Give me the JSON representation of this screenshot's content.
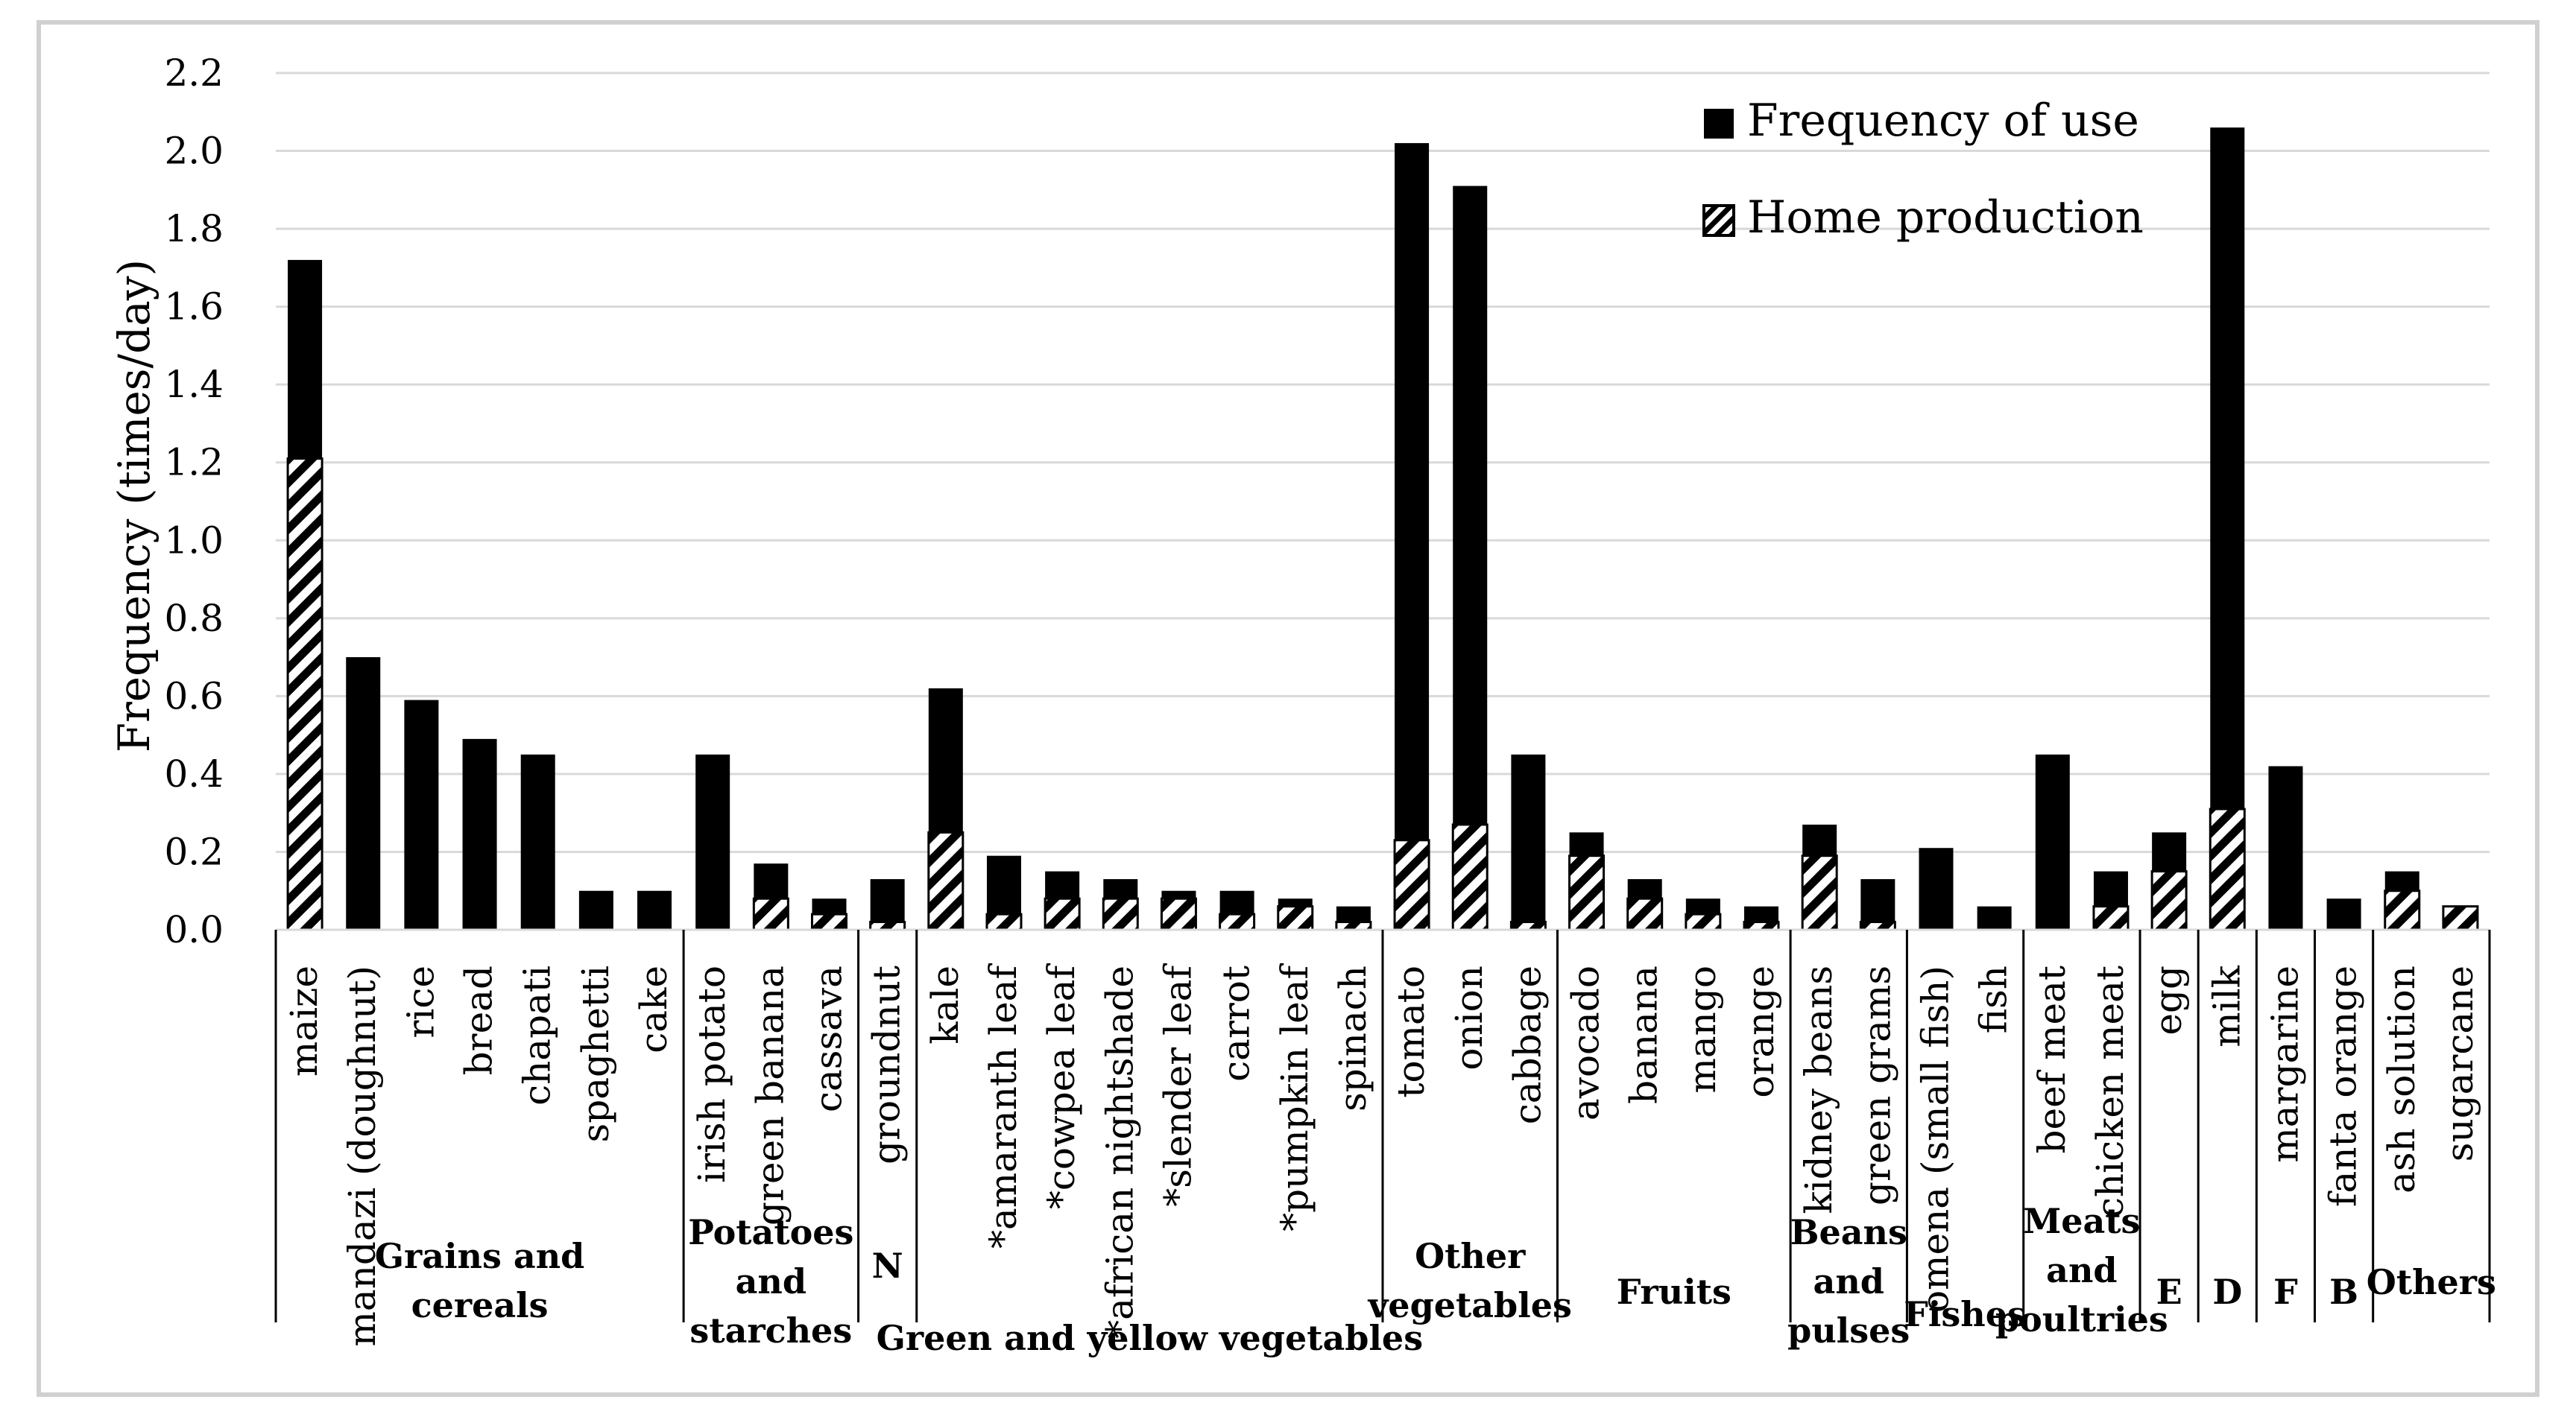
{
  "chart_data": {
    "type": "bar",
    "stacking": "overlay",
    "ylabel": "Frequency (times/day)",
    "xlabel": "",
    "ylim": [
      0,
      2.2
    ],
    "yticks": [
      "0.0",
      "0.2",
      "0.4",
      "0.6",
      "0.8",
      "1.0",
      "1.2",
      "1.4",
      "1.6",
      "1.8",
      "2.0",
      "2.2"
    ],
    "grid": true,
    "legend_position": "top-right",
    "categories": [
      "maize",
      "mandazi (doughnut)",
      "rice",
      "bread",
      "chapati",
      "spaghetti",
      "cake",
      "irish potato",
      "green banana",
      "cassava",
      "groundnut",
      "kale",
      "*amaranth leaf",
      "*cowpea leaf",
      "*african nightshade",
      "*slender leaf",
      "carrot",
      "*pumpkin leaf",
      "spinach",
      "tomato",
      "onion",
      "cabbage",
      "avocado",
      "banana",
      "mango",
      "orange",
      "kidney beans",
      "green grams",
      "omena (small fish)",
      "fish",
      "beef meat",
      "chicken meat",
      "egg",
      "milk",
      "margarine",
      "fanta orange",
      "ash solution",
      "sugarcane"
    ],
    "series": [
      {
        "name": "Frequency of use",
        "pattern": "solid",
        "color": "#000000",
        "values": [
          1.72,
          0.7,
          0.59,
          0.49,
          0.45,
          0.1,
          0.1,
          0.45,
          0.17,
          0.08,
          0.13,
          0.62,
          0.19,
          0.15,
          0.13,
          0.1,
          0.1,
          0.08,
          0.06,
          2.02,
          1.91,
          0.45,
          0.25,
          0.13,
          0.08,
          0.06,
          0.27,
          0.13,
          0.21,
          0.06,
          0.45,
          0.15,
          0.25,
          2.06,
          0.42,
          0.08,
          0.15,
          0.06
        ]
      },
      {
        "name": "Home production",
        "pattern": "hatched",
        "color": "#000000",
        "values": [
          1.21,
          0.0,
          0.0,
          0.0,
          0.0,
          0.0,
          0.0,
          0.0,
          0.08,
          0.04,
          0.02,
          0.25,
          0.04,
          0.08,
          0.08,
          0.08,
          0.04,
          0.06,
          0.02,
          0.23,
          0.27,
          0.02,
          0.19,
          0.08,
          0.04,
          0.02,
          0.19,
          0.02,
          0.0,
          0.0,
          0.0,
          0.06,
          0.15,
          0.31,
          0.0,
          0.0,
          0.1,
          0.06
        ]
      }
    ],
    "groups": [
      {
        "label": "Grains and cereals",
        "start": 0,
        "end": 6
      },
      {
        "label": "Potatoes and starches",
        "start": 7,
        "end": 9
      },
      {
        "label": "N",
        "start": 10,
        "end": 10
      },
      {
        "label": "Green and yellow vegetables",
        "start": 11,
        "end": 18
      },
      {
        "label": "Other vegetables",
        "start": 19,
        "end": 21
      },
      {
        "label": "Fruits",
        "start": 22,
        "end": 25
      },
      {
        "label": "Beans and pulses",
        "start": 26,
        "end": 27
      },
      {
        "label": "Fishes",
        "start": 28,
        "end": 29
      },
      {
        "label": "Meats and poultries",
        "start": 30,
        "end": 31
      },
      {
        "label": "E",
        "start": 32,
        "end": 32
      },
      {
        "label": "D",
        "start": 33,
        "end": 33
      },
      {
        "label": "F",
        "start": 34,
        "end": 34
      },
      {
        "label": "B",
        "start": 35,
        "end": 35
      },
      {
        "label": "Others",
        "start": 36,
        "end": 37
      }
    ]
  }
}
